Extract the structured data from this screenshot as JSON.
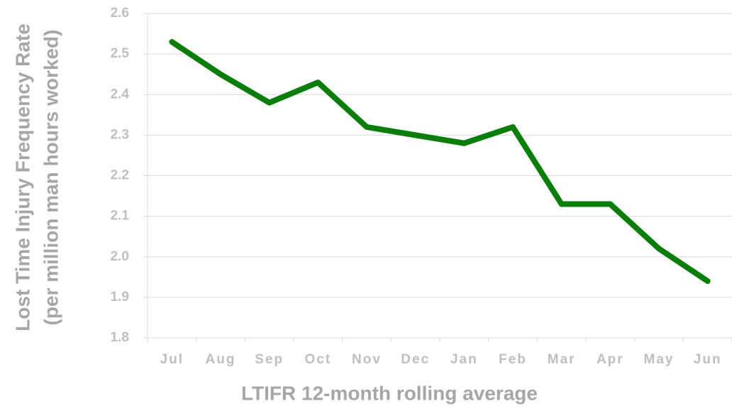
{
  "chart_data": {
    "type": "line",
    "ylabel": [
      "Lost Time Injury Frequency Rate",
      "(per million man hours worked)"
    ],
    "xlabel": "LTIFR 12-month rolling average",
    "categories": [
      "Jul",
      "Aug",
      "Sep",
      "Oct",
      "Nov",
      "Dec",
      "Jan",
      "Feb",
      "Mar",
      "Apr",
      "May",
      "Jun"
    ],
    "values": [
      2.53,
      2.45,
      2.38,
      2.43,
      2.32,
      2.3,
      2.28,
      2.32,
      2.13,
      2.13,
      2.02,
      1.94
    ],
    "color": "#0a7d0a",
    "ylim": [
      1.8,
      2.6
    ],
    "yticks": [
      1.8,
      1.9,
      {
        "value": 2,
        "label": "2.0"
      },
      2.1,
      2.2,
      2.3,
      2.4,
      2.5,
      2.6
    ],
    "grid": true
  }
}
